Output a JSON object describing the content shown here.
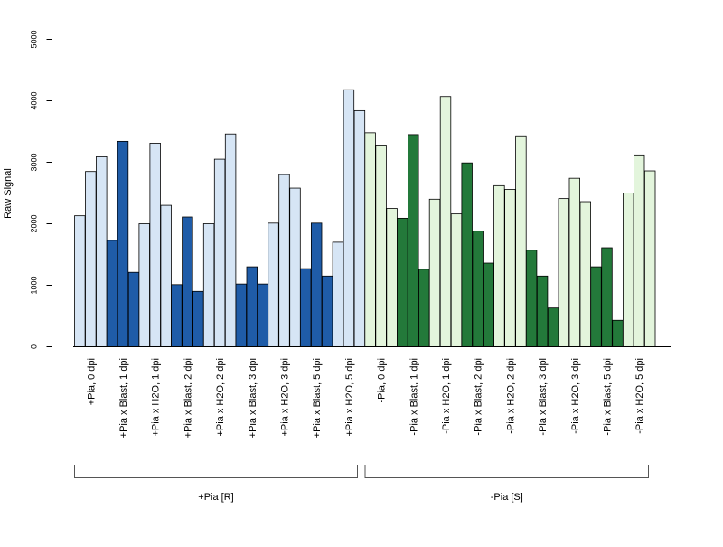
{
  "chart_data": {
    "type": "bar",
    "ylabel": "Raw Signal",
    "ylim": [
      0,
      5000
    ],
    "yticks": [
      0,
      1000,
      2000,
      3000,
      4000,
      5000
    ],
    "categories": [
      "+Pia, 0 dpi",
      "+Pia x Blast, 1 dpi",
      "+Pia x H2O, 1 dpi",
      "+Pia x Blast, 2 dpi",
      "+Pia x H2O, 2 dpi",
      "+Pia x Blast, 3 dpi",
      "+Pia x H2O, 3 dpi",
      "+Pia x Blast, 5 dpi",
      "+Pia x H2O, 5 dpi",
      "-Pia, 0 dpi",
      "-Pia x Blast, 1 dpi",
      "-Pia x H2O, 1 dpi",
      "-Pia x Blast, 2 dpi",
      "-Pia x H2O, 2 dpi",
      "-Pia x Blast, 3 dpi",
      "-Pia x H2O, 3 dpi",
      "-Pia x Blast, 5 dpi",
      "-Pia x H2O, 5 dpi"
    ],
    "values": [
      [
        2130,
        2850,
        3090
      ],
      [
        1730,
        3340,
        1210
      ],
      [
        2000,
        3310,
        2300
      ],
      [
        1010,
        2110,
        900
      ],
      [
        2000,
        3050,
        3460
      ],
      [
        1020,
        1300,
        1020
      ],
      [
        2010,
        2800,
        2580
      ],
      [
        1270,
        2010,
        1150
      ],
      [
        1700,
        4180,
        3840
      ],
      [
        3480,
        3280,
        2250
      ],
      [
        2090,
        3450,
        1260
      ],
      [
        2400,
        4070,
        2160
      ],
      [
        2990,
        1880,
        1360
      ],
      [
        2620,
        2560,
        3430
      ],
      [
        1570,
        1150,
        630
      ],
      [
        2410,
        2740,
        2360
      ],
      [
        1300,
        1610,
        430
      ],
      [
        2500,
        3120,
        2860
      ]
    ],
    "bar_colors": [
      "#d6e5f5",
      "#1f5ca8",
      "#d6e5f5",
      "#1f5ca8",
      "#d6e5f5",
      "#1f5ca8",
      "#d6e5f5",
      "#1f5ca8",
      "#d6e5f5",
      "#e3f5dc",
      "#23793a",
      "#e3f5dc",
      "#23793a",
      "#e3f5dc",
      "#23793a",
      "#e3f5dc",
      "#23793a",
      "#e3f5dc"
    ],
    "groups": [
      {
        "label": "+Pia [R]",
        "first": 0,
        "last": 8
      },
      {
        "label": "-Pia [S]",
        "first": 9,
        "last": 17
      }
    ],
    "grid": false,
    "legend": "none"
  }
}
